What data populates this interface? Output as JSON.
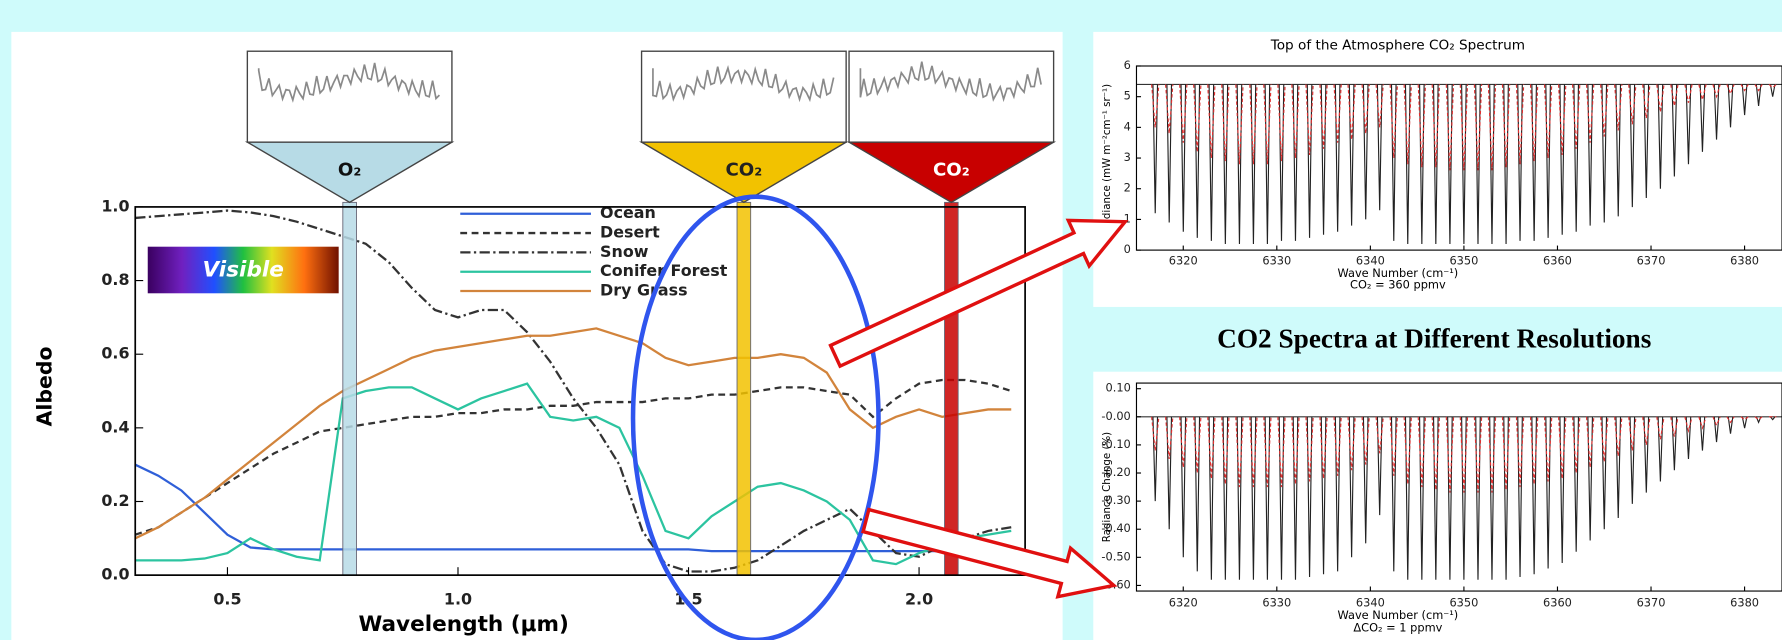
{
  "heading": "CO2 Spectra at Different Resolutions",
  "chart_data": [
    {
      "type": "line",
      "xlabel": "Wavelength (μm)",
      "ylabel": "Albedo",
      "visible_label": "Visible",
      "xlim": [
        0.3,
        2.23
      ],
      "ylim": [
        0,
        1
      ],
      "xticks": [
        0.5,
        {
          "value": 1,
          "label": "1.0"
        },
        1.5,
        {
          "value": 2,
          "label": "2.0"
        }
      ],
      "yticks": [
        {
          "value": 0,
          "label": "0.0"
        },
        0.2,
        0.4,
        0.6,
        0.8,
        {
          "value": 1,
          "label": "1.0"
        }
      ],
      "x": [
        0.3,
        0.35,
        0.4,
        0.45,
        0.5,
        0.55,
        0.6,
        0.65,
        0.7,
        0.75,
        0.8,
        0.85,
        0.9,
        0.95,
        1.0,
        1.05,
        1.1,
        1.15,
        1.2,
        1.25,
        1.3,
        1.35,
        1.4,
        1.45,
        1.5,
        1.55,
        1.6,
        1.65,
        1.7,
        1.75,
        1.8,
        1.85,
        1.9,
        1.95,
        2.0,
        2.05,
        2.1,
        2.15,
        2.2
      ],
      "series": [
        {
          "name": "Ocean",
          "color": "#2f5fd8",
          "dash": "solid",
          "values": [
            0.3,
            0.27,
            0.23,
            0.17,
            0.11,
            0.075,
            0.07,
            0.07,
            0.07,
            0.07,
            0.07,
            0.07,
            0.07,
            0.07,
            0.07,
            0.07,
            0.07,
            0.07,
            0.07,
            0.07,
            0.07,
            0.07,
            0.07,
            0.07,
            0.07,
            0.065,
            0.065,
            0.065,
            0.065,
            0.065,
            0.065,
            0.065,
            0.065,
            0.065,
            0.065,
            0.065,
            0.065,
            0.065,
            0.065
          ]
        },
        {
          "name": "Desert",
          "color": "#333333",
          "dash": "dashed",
          "values": [
            0.11,
            0.13,
            0.17,
            0.21,
            0.25,
            0.29,
            0.33,
            0.36,
            0.39,
            0.4,
            0.41,
            0.42,
            0.43,
            0.43,
            0.44,
            0.44,
            0.45,
            0.45,
            0.46,
            0.46,
            0.47,
            0.47,
            0.47,
            0.48,
            0.48,
            0.49,
            0.49,
            0.5,
            0.51,
            0.51,
            0.5,
            0.49,
            0.43,
            0.48,
            0.52,
            0.53,
            0.53,
            0.52,
            0.5
          ]
        },
        {
          "name": "Snow",
          "color": "#333333",
          "dash": "dashdot",
          "values": [
            0.97,
            0.975,
            0.98,
            0.985,
            0.99,
            0.985,
            0.975,
            0.96,
            0.94,
            0.92,
            0.9,
            0.85,
            0.78,
            0.72,
            0.7,
            0.72,
            0.72,
            0.66,
            0.58,
            0.48,
            0.4,
            0.3,
            0.12,
            0.03,
            0.01,
            0.01,
            0.02,
            0.04,
            0.08,
            0.12,
            0.15,
            0.18,
            0.12,
            0.06,
            0.05,
            0.08,
            0.1,
            0.12,
            0.13
          ]
        },
        {
          "name": "Conifer Forest",
          "color": "#2cc4a0",
          "dash": "solid",
          "values": [
            0.04,
            0.04,
            0.04,
            0.045,
            0.06,
            0.1,
            0.07,
            0.05,
            0.04,
            0.48,
            0.5,
            0.51,
            0.51,
            0.48,
            0.45,
            0.48,
            0.5,
            0.52,
            0.43,
            0.42,
            0.43,
            0.4,
            0.27,
            0.12,
            0.1,
            0.16,
            0.2,
            0.24,
            0.25,
            0.23,
            0.2,
            0.15,
            0.04,
            0.03,
            0.06,
            0.08,
            0.1,
            0.11,
            0.12
          ]
        },
        {
          "name": "Dry Grass",
          "color": "#d2843c",
          "dash": "solid",
          "values": [
            0.1,
            0.13,
            0.17,
            0.21,
            0.26,
            0.31,
            0.36,
            0.41,
            0.46,
            0.5,
            0.53,
            0.56,
            0.59,
            0.61,
            0.62,
            0.63,
            0.64,
            0.65,
            0.65,
            0.66,
            0.67,
            0.65,
            0.63,
            0.59,
            0.57,
            0.58,
            0.59,
            0.59,
            0.6,
            0.59,
            0.55,
            0.45,
            0.4,
            0.43,
            0.45,
            0.43,
            0.44,
            0.45,
            0.45
          ]
        }
      ],
      "bands": [
        {
          "label": "O₂",
          "x": 0.765,
          "color": "#b7dbe6",
          "text_color": "#111111"
        },
        {
          "label": "CO₂",
          "x": 1.62,
          "color": "#f2c200",
          "text_color": "#222222"
        },
        {
          "label": "CO₂",
          "x": 2.07,
          "color": "#c80000",
          "text_color": "#ffffff"
        }
      ]
    },
    {
      "type": "absorption",
      "title": "Top of the Atmosphere CO₂ Spectrum",
      "ylabel": "Radiance (mW m⁻²cm⁻¹ sr⁻¹)",
      "xlabel": "Wave Number (cm⁻¹)",
      "subtitle": "CO₂ = 360 ppmv",
      "xlim": [
        6315,
        6384
      ],
      "ylim": [
        0,
        6
      ],
      "xticks": [
        6320,
        6330,
        6340,
        6350,
        6360,
        6370,
        6380
      ],
      "yticks": [
        0,
        1,
        2,
        3,
        4,
        5,
        6
      ],
      "continuum": 5.4,
      "x": [
        6317,
        6318.5,
        6320,
        6321.5,
        6323,
        6324.5,
        6326,
        6327.5,
        6329,
        6330.5,
        6332,
        6333.5,
        6335,
        6336.5,
        6338,
        6339.5,
        6341,
        6342.5,
        6344,
        6345.5,
        6347,
        6348.5,
        6350,
        6351.5,
        6353,
        6354.5,
        6356,
        6357.5,
        6359,
        6360.5,
        6362,
        6363.5,
        6365,
        6366.5,
        6368,
        6369.5,
        6371,
        6372.5,
        6374,
        6375.5,
        6377,
        6378.5,
        6380,
        6381.5,
        6383
      ],
      "series": [
        {
          "color": "#222222",
          "dash": "solid",
          "values": [
            1.2,
            0.9,
            0.6,
            0.4,
            0.3,
            0.2,
            0.2,
            0.2,
            0.2,
            0.3,
            0.3,
            0.4,
            0.5,
            0.6,
            0.8,
            1.0,
            1.3,
            0.3,
            0.2,
            0.2,
            0.2,
            0.2,
            0.2,
            0.2,
            0.2,
            0.2,
            0.3,
            0.3,
            0.4,
            0.5,
            0.6,
            0.8,
            0.9,
            1.1,
            1.4,
            1.7,
            2.0,
            2.4,
            2.8,
            3.2,
            3.6,
            4.0,
            4.4,
            4.7,
            5.0
          ]
        },
        {
          "color": "#e03030",
          "dash": "dashed",
          "values": [
            4.0,
            3.8,
            3.5,
            3.2,
            3.0,
            2.9,
            2.8,
            2.8,
            2.8,
            2.9,
            3.0,
            3.1,
            3.3,
            3.5,
            3.6,
            3.8,
            4.0,
            3.0,
            2.8,
            2.7,
            2.7,
            2.6,
            2.6,
            2.6,
            2.6,
            2.7,
            2.8,
            2.9,
            3.0,
            3.1,
            3.3,
            3.5,
            3.7,
            3.9,
            4.1,
            4.3,
            4.5,
            4.7,
            4.8,
            4.9,
            5.0,
            5.1,
            5.2,
            5.2,
            5.3
          ]
        }
      ]
    },
    {
      "type": "absorption",
      "ylabel": "Radiance Change (%)",
      "xlabel": "Wave Number (cm⁻¹)",
      "subtitle": "ΔCO₂ = 1 ppmv",
      "xlim": [
        6315,
        6384
      ],
      "ylim": [
        -0.62,
        0.12
      ],
      "xticks": [
        6320,
        6330,
        6340,
        6350,
        6360,
        6370,
        6380
      ],
      "yticks": [
        {
          "value": 0.1,
          "label": "0.10"
        },
        {
          "value": 0,
          "label": "-0.00"
        },
        {
          "value": -0.1,
          "label": "-0.10"
        },
        {
          "value": -0.2,
          "label": "-0.20"
        },
        {
          "value": -0.3,
          "label": "-0.30"
        },
        {
          "value": -0.4,
          "label": "-0.40"
        },
        {
          "value": -0.5,
          "label": "-0.50"
        },
        {
          "value": -0.6,
          "label": "-0.60"
        }
      ],
      "continuum": 0,
      "x": [
        6317,
        6318.5,
        6320,
        6321.5,
        6323,
        6324.5,
        6326,
        6327.5,
        6329,
        6330.5,
        6332,
        6333.5,
        6335,
        6336.5,
        6338,
        6339.5,
        6341,
        6342.5,
        6344,
        6345.5,
        6347,
        6348.5,
        6350,
        6351.5,
        6353,
        6354.5,
        6356,
        6357.5,
        6359,
        6360.5,
        6362,
        6363.5,
        6365,
        6366.5,
        6368,
        6369.5,
        6371,
        6372.5,
        6374,
        6375.5,
        6377,
        6378.5,
        6380,
        6381.5,
        6383
      ],
      "series": [
        {
          "color": "#222222",
          "dash": "solid",
          "values": [
            -0.3,
            -0.4,
            -0.5,
            -0.55,
            -0.58,
            -0.58,
            -0.58,
            -0.58,
            -0.58,
            -0.58,
            -0.58,
            -0.57,
            -0.56,
            -0.55,
            -0.5,
            -0.45,
            -0.35,
            -0.55,
            -0.58,
            -0.58,
            -0.58,
            -0.58,
            -0.58,
            -0.58,
            -0.58,
            -0.58,
            -0.57,
            -0.56,
            -0.54,
            -0.52,
            -0.48,
            -0.44,
            -0.4,
            -0.36,
            -0.31,
            -0.27,
            -0.23,
            -0.19,
            -0.15,
            -0.12,
            -0.09,
            -0.06,
            -0.04,
            -0.02,
            -0.01
          ]
        },
        {
          "color": "#e03030",
          "dash": "dashed",
          "values": [
            -0.12,
            -0.15,
            -0.18,
            -0.2,
            -0.22,
            -0.24,
            -0.25,
            -0.25,
            -0.25,
            -0.25,
            -0.24,
            -0.23,
            -0.22,
            -0.21,
            -0.19,
            -0.17,
            -0.13,
            -0.21,
            -0.24,
            -0.25,
            -0.26,
            -0.27,
            -0.27,
            -0.27,
            -0.27,
            -0.26,
            -0.25,
            -0.24,
            -0.23,
            -0.22,
            -0.2,
            -0.18,
            -0.16,
            -0.14,
            -0.12,
            -0.1,
            -0.08,
            -0.07,
            -0.05,
            -0.04,
            -0.03,
            -0.02,
            -0.01,
            -0.01,
            0
          ]
        }
      ]
    }
  ]
}
